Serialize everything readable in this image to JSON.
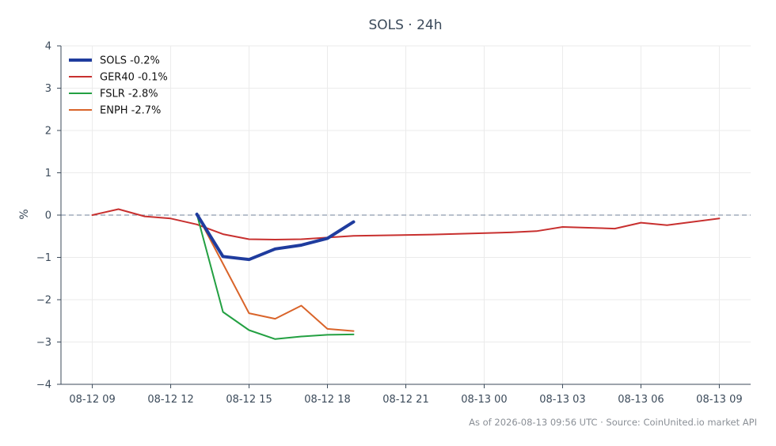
{
  "chart_data": {
    "type": "line",
    "title": "SOLS · 24h",
    "xlabel": "",
    "ylabel": "%",
    "ylim": [
      -4,
      4
    ],
    "yticks": [
      -4,
      -3,
      -2,
      -1,
      0,
      1,
      2,
      3,
      4
    ],
    "ytick_labels": [
      "−4",
      "−3",
      "−2",
      "−1",
      "0",
      "1",
      "2",
      "3",
      "4"
    ],
    "xlim": [
      "2026-08-12 07:48",
      "2026-08-13 10:12"
    ],
    "xticks": [
      {
        "x": "2026-08-12 09:00",
        "label": "08-12 09"
      },
      {
        "x": "2026-08-12 12:00",
        "label": "08-12 12"
      },
      {
        "x": "2026-08-12 15:00",
        "label": "08-12 15"
      },
      {
        "x": "2026-08-12 18:00",
        "label": "08-12 18"
      },
      {
        "x": "2026-08-12 21:00",
        "label": "08-12 21"
      },
      {
        "x": "2026-08-13 00:00",
        "label": "08-13 00"
      },
      {
        "x": "2026-08-13 03:00",
        "label": "08-13 03"
      },
      {
        "x": "2026-08-13 06:00",
        "label": "08-13 06"
      },
      {
        "x": "2026-08-13 09:00",
        "label": "08-13 09"
      }
    ],
    "grid": true,
    "zero_reference_line": true,
    "legend_position": "top-left",
    "series": [
      {
        "name": "SOLS -0.2%",
        "color": "#1f3c9e",
        "line_width": "thick",
        "points": [
          {
            "x": "2026-08-12 13:00",
            "y": 0.02
          },
          {
            "x": "2026-08-12 14:00",
            "y": -0.98
          },
          {
            "x": "2026-08-12 15:00",
            "y": -1.05
          },
          {
            "x": "2026-08-12 16:00",
            "y": -0.8
          },
          {
            "x": "2026-08-12 17:00",
            "y": -0.71
          },
          {
            "x": "2026-08-12 18:00",
            "y": -0.55
          },
          {
            "x": "2026-08-12 19:00",
            "y": -0.16
          }
        ]
      },
      {
        "name": "GER40 -0.1%",
        "color": "#c8302f",
        "line_width": "normal",
        "points": [
          {
            "x": "2026-08-12 09:00",
            "y": 0.0
          },
          {
            "x": "2026-08-12 10:00",
            "y": 0.14
          },
          {
            "x": "2026-08-12 11:00",
            "y": -0.03
          },
          {
            "x": "2026-08-12 12:00",
            "y": -0.08
          },
          {
            "x": "2026-08-12 13:00",
            "y": -0.22
          },
          {
            "x": "2026-08-12 14:00",
            "y": -0.45
          },
          {
            "x": "2026-08-12 15:00",
            "y": -0.57
          },
          {
            "x": "2026-08-12 16:00",
            "y": -0.58
          },
          {
            "x": "2026-08-12 17:00",
            "y": -0.57
          },
          {
            "x": "2026-08-12 18:00",
            "y": -0.53
          },
          {
            "x": "2026-08-12 19:00",
            "y": -0.49
          },
          {
            "x": "2026-08-12 22:00",
            "y": -0.46
          },
          {
            "x": "2026-08-13 01:00",
            "y": -0.41
          },
          {
            "x": "2026-08-13 02:00",
            "y": -0.38
          },
          {
            "x": "2026-08-13 03:00",
            "y": -0.28
          },
          {
            "x": "2026-08-13 05:00",
            "y": -0.32
          },
          {
            "x": "2026-08-13 06:00",
            "y": -0.18
          },
          {
            "x": "2026-08-13 07:00",
            "y": -0.24
          },
          {
            "x": "2026-08-13 09:00",
            "y": -0.08
          }
        ]
      },
      {
        "name": "FSLR -2.8%",
        "color": "#23a042",
        "line_width": "normal",
        "points": [
          {
            "x": "2026-08-12 13:00",
            "y": 0.02
          },
          {
            "x": "2026-08-12 14:00",
            "y": -2.29
          },
          {
            "x": "2026-08-12 15:00",
            "y": -2.72
          },
          {
            "x": "2026-08-12 16:00",
            "y": -2.93
          },
          {
            "x": "2026-08-12 17:00",
            "y": -2.87
          },
          {
            "x": "2026-08-12 18:00",
            "y": -2.83
          },
          {
            "x": "2026-08-12 19:00",
            "y": -2.82
          }
        ]
      },
      {
        "name": "ENPH -2.7%",
        "color": "#d9642a",
        "line_width": "normal",
        "points": [
          {
            "x": "2026-08-12 13:00",
            "y": 0.02
          },
          {
            "x": "2026-08-12 14:00",
            "y": -1.15
          },
          {
            "x": "2026-08-12 15:00",
            "y": -2.32
          },
          {
            "x": "2026-08-12 16:00",
            "y": -2.45
          },
          {
            "x": "2026-08-12 17:00",
            "y": -2.14
          },
          {
            "x": "2026-08-12 18:00",
            "y": -2.69
          },
          {
            "x": "2026-08-12 19:00",
            "y": -2.74
          }
        ]
      }
    ]
  },
  "footer": {
    "source_text": "As of 2026-08-13 09:56 UTC · Source: CoinUnited.io market API"
  }
}
